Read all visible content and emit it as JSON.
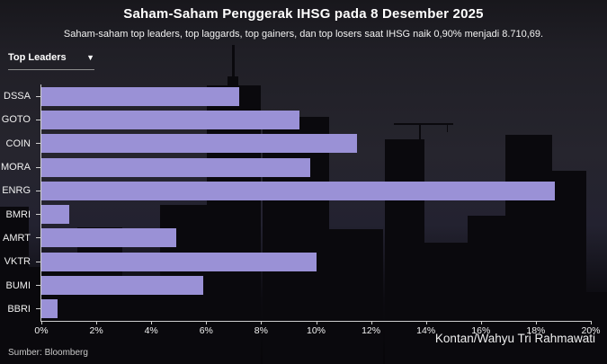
{
  "header": {
    "title": "Saham-Saham Penggerak IHSG pada 8 Desember 2025",
    "subtitle": "Saham-saham top leaders, top laggards, top gainers, dan top losers saat IHSG naik 0,90% menjadi 8.710,69."
  },
  "filter": {
    "selected": "Top Leaders",
    "caret_icon": "▼"
  },
  "chart_data": {
    "type": "bar",
    "orientation": "horizontal",
    "title": "Saham-Saham Penggerak IHSG pada 8 Desember 2025",
    "categories": [
      "DSSA",
      "GOTO",
      "COIN",
      "MORA",
      "ENRG",
      "BMRI",
      "AMRT",
      "VKTR",
      "BUMI",
      "BBRI"
    ],
    "values": [
      7.2,
      9.4,
      11.5,
      9.8,
      18.7,
      1.0,
      4.9,
      10.0,
      5.9,
      0.6
    ],
    "unit": "%",
    "xlabel": "",
    "ylabel": "",
    "xlim": [
      0,
      20
    ],
    "xticks": [
      0,
      2,
      4,
      6,
      8,
      10,
      12,
      14,
      16,
      18,
      20
    ],
    "xtick_labels": [
      "0%",
      "2%",
      "4%",
      "6%",
      "8%",
      "10%",
      "12%",
      "14%",
      "16%",
      "18%",
      "20%"
    ],
    "grid": false,
    "legend_position": "none",
    "bar_color": "#9a91d6"
  },
  "footer": {
    "source": "Sumber: Bloomberg",
    "credit": "Kontan/Wahyu Tri Rahmawati"
  },
  "colors": {
    "background_sky": "#26252e",
    "background_buildings": "#0a090d",
    "bar": "#9a91d6",
    "text": "#f2f2f2",
    "axis": "#cfcfcf"
  }
}
